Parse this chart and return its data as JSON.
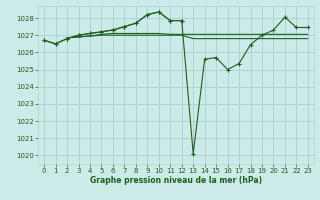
{
  "xlabel": "Graphe pression niveau de la mer (hPa)",
  "bg_color": "#cceae7",
  "grid_color": "#add4d0",
  "line_color": "#1e5e1e",
  "ylim": [
    1019.5,
    1028.7
  ],
  "xlim": [
    -0.5,
    23.5
  ],
  "yticks": [
    1020,
    1021,
    1022,
    1023,
    1024,
    1025,
    1026,
    1027,
    1028
  ],
  "xticks": [
    0,
    1,
    2,
    3,
    4,
    5,
    6,
    7,
    8,
    9,
    10,
    11,
    12,
    13,
    14,
    15,
    16,
    17,
    18,
    19,
    20,
    21,
    22,
    23
  ],
  "series": [
    {
      "x": [
        0,
        1,
        2,
        3,
        4,
        5,
        6,
        7,
        8,
        9,
        10,
        11,
        12
      ],
      "y": [
        1026.7,
        1026.5,
        1026.8,
        1027.0,
        1027.1,
        1027.2,
        1027.3,
        1027.5,
        1027.7,
        1028.2,
        1028.35,
        1027.85,
        1027.85
      ],
      "marker": true
    },
    {
      "x": [
        0,
        1,
        2,
        3,
        4,
        5,
        6,
        7,
        8,
        9,
        10,
        11,
        12,
        13,
        14,
        15,
        16,
        17,
        18,
        19,
        20,
        21,
        22,
        23
      ],
      "y": [
        1026.7,
        1026.5,
        1026.8,
        1027.0,
        1027.1,
        1027.2,
        1027.3,
        1027.5,
        1027.7,
        1028.2,
        1028.35,
        1027.85,
        1027.85,
        1020.1,
        1025.6,
        1025.7,
        1025.0,
        1025.35,
        1026.45,
        1027.0,
        1027.3,
        1028.05,
        1027.45,
        1027.45
      ],
      "marker": true
    },
    {
      "x": [
        2,
        3,
        4,
        5,
        6,
        7,
        8,
        9,
        10,
        11,
        12,
        13,
        14,
        15,
        16,
        17,
        18,
        19,
        20,
        21,
        22,
        23
      ],
      "y": [
        1026.85,
        1026.9,
        1026.95,
        1027.0,
        1027.0,
        1027.0,
        1027.0,
        1027.0,
        1027.0,
        1027.0,
        1027.0,
        1026.8,
        1026.8,
        1026.8,
        1026.8,
        1026.8,
        1026.8,
        1026.8,
        1026.8,
        1026.8,
        1026.8,
        1026.8
      ],
      "marker": false
    },
    {
      "x": [
        2,
        3,
        4,
        5,
        6,
        7,
        8,
        9,
        10,
        11,
        12,
        13,
        14,
        15,
        16,
        17,
        18,
        19,
        20,
        21,
        22,
        23
      ],
      "y": [
        1026.85,
        1026.9,
        1026.95,
        1027.05,
        1027.1,
        1027.1,
        1027.1,
        1027.1,
        1027.1,
        1027.05,
        1027.05,
        1027.05,
        1027.05,
        1027.05,
        1027.05,
        1027.05,
        1027.05,
        1027.05,
        1027.05,
        1027.05,
        1027.05,
        1027.05
      ],
      "marker": false
    }
  ]
}
